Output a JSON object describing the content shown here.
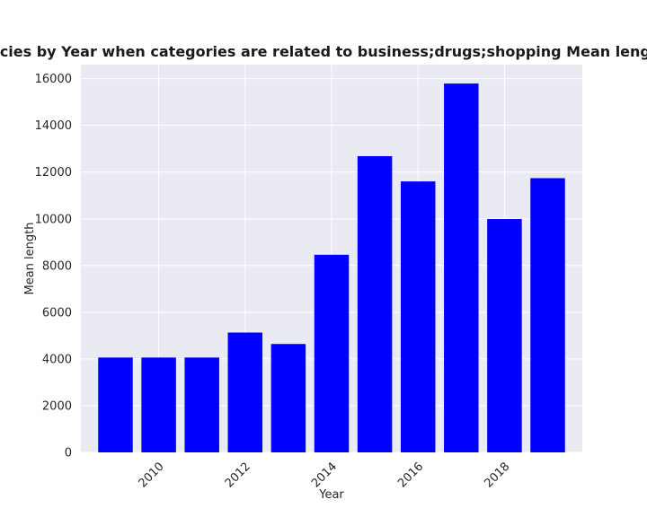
{
  "chart_data": {
    "type": "bar",
    "title": "Mean length in privacy policies by Year when categories are related to business;drugs;shopping Mean length in privacy policies by Year",
    "xlabel": "Year",
    "ylabel": "Mean length",
    "x": [
      2009,
      2010,
      2011,
      2012,
      2013,
      2014,
      2015,
      2016,
      2017,
      2018,
      2019
    ],
    "values": [
      4060,
      4060,
      4060,
      5130,
      4640,
      8460,
      12680,
      11600,
      15790,
      9990,
      11740
    ],
    "bar_color": "#0000ff",
    "xticks": [
      2010,
      2012,
      2014,
      2016,
      2018
    ],
    "xtick_labels": [
      "2010",
      "2012",
      "2014",
      "2016",
      "2018"
    ],
    "xlim": [
      2008.2,
      2019.8
    ],
    "yticks": [
      0,
      2000,
      4000,
      6000,
      8000,
      10000,
      12000,
      14000,
      16000
    ],
    "ytick_labels": [
      "0",
      "2000",
      "4000",
      "6000",
      "8000",
      "10000",
      "12000",
      "14000",
      "16000"
    ],
    "ylim": [
      0,
      16600
    ],
    "grid": true,
    "background_color": "#eaeaf2",
    "grid_color": "#ffffff"
  }
}
